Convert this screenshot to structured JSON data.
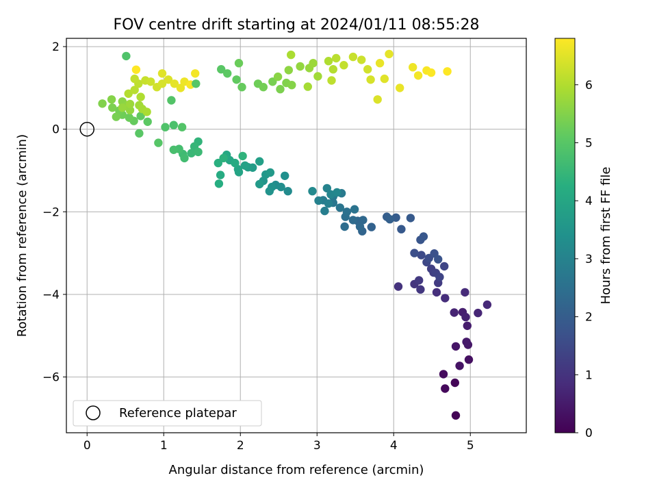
{
  "chart_data": {
    "type": "scatter",
    "title": "FOV centre drift starting at 2024/01/11 08:55:28",
    "xlabel": "Angular distance from reference (arcmin)",
    "ylabel": "Rotation from reference (arcmin)",
    "xlim": [
      -0.27,
      5.73
    ],
    "ylim": [
      -7.35,
      2.2
    ],
    "xticks": [
      0,
      1,
      2,
      3,
      4,
      5
    ],
    "yticks": [
      2,
      0,
      -2,
      -4,
      -6
    ],
    "grid": true,
    "colorbar": {
      "label": "Hours from first FF file",
      "range": [
        0,
        6.8
      ],
      "ticks": [
        0,
        1,
        2,
        3,
        4,
        5,
        6
      ],
      "colormap": "viridis"
    },
    "legend": {
      "placement": "lower-left",
      "entries": [
        "Reference platepar"
      ]
    },
    "reference_point": {
      "x": 0,
      "y": 0
    },
    "series": [
      {
        "points": [
          [
            4.81,
            -6.93,
            0.05
          ],
          [
            4.67,
            -6.28,
            0.15
          ],
          [
            4.65,
            -5.93,
            0.2
          ],
          [
            4.8,
            -6.14,
            0.1
          ],
          [
            4.98,
            -5.58,
            0.3
          ],
          [
            4.86,
            -5.73,
            0.35
          ],
          [
            4.97,
            -5.22,
            0.45
          ],
          [
            4.95,
            -5.15,
            0.5
          ],
          [
            4.81,
            -5.26,
            0.4
          ],
          [
            4.96,
            -4.76,
            0.55
          ],
          [
            4.9,
            -4.43,
            0.6
          ],
          [
            4.94,
            -4.55,
            0.65
          ],
          [
            4.79,
            -4.44,
            0.7
          ],
          [
            5.1,
            -4.45,
            0.75
          ],
          [
            5.22,
            -4.25,
            0.8
          ],
          [
            4.93,
            -3.95,
            0.85
          ],
          [
            4.67,
            -4.09,
            0.9
          ],
          [
            4.56,
            -3.95,
            0.95
          ],
          [
            4.06,
            -3.81,
            1.0
          ],
          [
            4.27,
            -3.75,
            1.05
          ],
          [
            4.35,
            -3.88,
            1.1
          ],
          [
            4.33,
            -3.66,
            1.15
          ],
          [
            4.58,
            -3.72,
            1.2
          ],
          [
            4.52,
            -3.47,
            1.25
          ],
          [
            4.49,
            -3.38,
            1.3
          ],
          [
            4.55,
            -3.48,
            1.35
          ],
          [
            4.6,
            -3.58,
            1.4
          ],
          [
            4.66,
            -3.32,
            1.45
          ],
          [
            4.43,
            -3.22,
            1.5
          ],
          [
            4.36,
            -3.05,
            1.55
          ],
          [
            4.46,
            -3.12,
            1.6
          ],
          [
            4.27,
            -3.0,
            1.65
          ],
          [
            4.53,
            -3.01,
            1.7
          ],
          [
            4.58,
            -3.15,
            1.75
          ],
          [
            4.35,
            -2.68,
            1.8
          ],
          [
            4.39,
            -2.6,
            1.85
          ],
          [
            4.1,
            -2.42,
            1.9
          ],
          [
            4.22,
            -2.15,
            1.95
          ],
          [
            4.03,
            -2.14,
            2.0
          ],
          [
            3.91,
            -2.12,
            2.05
          ],
          [
            3.95,
            -2.18,
            2.1
          ],
          [
            3.71,
            -2.37,
            2.15
          ],
          [
            3.59,
            -2.47,
            2.2
          ],
          [
            3.53,
            -2.22,
            2.25
          ],
          [
            3.6,
            -2.2,
            2.3
          ],
          [
            3.56,
            -2.36,
            2.35
          ],
          [
            3.47,
            -2.2,
            2.4
          ],
          [
            3.36,
            -2.36,
            2.45
          ],
          [
            3.37,
            -2.12,
            2.5
          ],
          [
            3.39,
            -2.0,
            2.55
          ],
          [
            3.49,
            -1.94,
            2.6
          ],
          [
            3.3,
            -1.9,
            2.65
          ],
          [
            3.21,
            -1.78,
            2.7
          ],
          [
            3.21,
            -1.63,
            2.75
          ],
          [
            3.32,
            -1.55,
            2.8
          ],
          [
            3.08,
            -1.72,
            2.85
          ],
          [
            3.1,
            -1.98,
            2.9
          ],
          [
            3.15,
            -1.8,
            2.95
          ],
          [
            3.02,
            -1.73,
            3.0
          ],
          [
            3.13,
            -1.43,
            3.05
          ],
          [
            3.18,
            -1.58,
            3.1
          ],
          [
            3.26,
            -1.53,
            3.15
          ],
          [
            2.94,
            -1.5,
            3.2
          ],
          [
            2.62,
            -1.5,
            3.25
          ],
          [
            2.46,
            -1.35,
            3.3
          ],
          [
            2.53,
            -1.4,
            3.35
          ],
          [
            2.58,
            -1.13,
            3.4
          ],
          [
            2.41,
            -1.4,
            3.45
          ],
          [
            2.38,
            -1.5,
            3.5
          ],
          [
            2.3,
            -1.25,
            3.55
          ],
          [
            2.33,
            -1.1,
            3.6
          ],
          [
            2.39,
            -1.05,
            3.65
          ],
          [
            2.25,
            -1.33,
            3.7
          ],
          [
            2.16,
            -0.93,
            3.75
          ],
          [
            2.1,
            -0.92,
            3.8
          ],
          [
            2.25,
            -0.78,
            3.85
          ],
          [
            2.06,
            -0.88,
            3.9
          ],
          [
            1.98,
            -1.04,
            3.95
          ],
          [
            1.97,
            -0.97,
            4.0
          ],
          [
            1.86,
            -0.75,
            4.05
          ],
          [
            1.82,
            -0.62,
            4.1
          ],
          [
            1.93,
            -0.82,
            4.15
          ],
          [
            1.74,
            -1.11,
            4.2
          ],
          [
            1.72,
            -1.32,
            4.25
          ],
          [
            1.71,
            -0.82,
            4.3
          ],
          [
            1.78,
            -0.7,
            4.35
          ],
          [
            2.03,
            -0.65,
            4.4
          ],
          [
            1.45,
            -0.3,
            4.45
          ],
          [
            1.4,
            -0.42,
            4.5
          ],
          [
            1.36,
            -0.58,
            4.55
          ],
          [
            1.45,
            -0.55,
            4.6
          ],
          [
            1.25,
            -0.6,
            4.65
          ],
          [
            1.27,
            -0.7,
            4.7
          ],
          [
            1.2,
            -0.48,
            4.75
          ],
          [
            1.13,
            -0.5,
            4.8
          ],
          [
            1.13,
            0.1,
            4.85
          ],
          [
            1.02,
            0.05,
            4.9
          ],
          [
            1.24,
            0.05,
            4.95
          ],
          [
            0.93,
            -0.33,
            5.0
          ],
          [
            0.68,
            -0.1,
            5.05
          ],
          [
            0.79,
            0.18,
            5.1
          ],
          [
            0.7,
            0.32,
            5.15
          ],
          [
            0.61,
            0.2,
            5.2
          ],
          [
            0.55,
            0.28,
            5.25
          ],
          [
            0.46,
            0.35,
            5.3
          ],
          [
            0.42,
            0.45,
            5.35
          ],
          [
            0.38,
            0.3,
            5.4
          ],
          [
            0.33,
            0.52,
            5.45
          ],
          [
            0.2,
            0.62,
            5.5
          ],
          [
            0.32,
            0.72,
            5.55
          ],
          [
            0.46,
            0.67,
            5.6
          ],
          [
            0.52,
            0.58,
            5.65
          ],
          [
            0.56,
            0.46,
            5.7
          ],
          [
            0.46,
            0.52,
            5.75
          ],
          [
            0.56,
            0.61,
            5.8
          ],
          [
            0.68,
            0.58,
            5.85
          ],
          [
            0.72,
            0.49,
            5.9
          ],
          [
            0.78,
            0.42,
            5.95
          ],
          [
            0.7,
            0.78,
            6.0
          ],
          [
            0.54,
            0.86,
            6.05
          ],
          [
            0.62,
            0.95,
            6.1
          ],
          [
            0.67,
            1.1,
            6.15
          ],
          [
            0.62,
            1.22,
            6.2
          ],
          [
            0.76,
            1.18,
            6.25
          ],
          [
            0.83,
            1.15,
            6.3
          ],
          [
            0.91,
            1.02,
            6.35
          ],
          [
            0.98,
            1.1,
            6.4
          ],
          [
            1.06,
            1.2,
            6.45
          ],
          [
            0.98,
            1.35,
            6.5
          ],
          [
            1.14,
            1.1,
            6.55
          ],
          [
            1.22,
            1.0,
            6.6
          ],
          [
            1.27,
            1.15,
            6.65
          ],
          [
            1.41,
            1.35,
            6.7
          ],
          [
            1.35,
            1.08,
            6.75
          ],
          [
            0.64,
            1.44,
            6.8
          ]
        ]
      },
      {
        "points": [
          [
            0.51,
            1.77,
            4.9
          ],
          [
            1.1,
            0.7,
            4.95
          ],
          [
            1.42,
            1.1,
            5.0
          ],
          [
            1.75,
            1.45,
            5.05
          ],
          [
            1.83,
            1.35,
            5.1
          ],
          [
            1.95,
            1.2,
            5.15
          ],
          [
            2.02,
            1.02,
            5.2
          ],
          [
            1.98,
            1.6,
            5.25
          ],
          [
            2.23,
            1.1,
            5.3
          ],
          [
            2.3,
            1.02,
            5.35
          ],
          [
            2.42,
            1.15,
            5.4
          ],
          [
            2.52,
            0.97,
            5.45
          ],
          [
            2.6,
            1.12,
            5.5
          ],
          [
            2.67,
            1.07,
            5.55
          ],
          [
            2.49,
            1.27,
            5.6
          ],
          [
            2.63,
            1.43,
            5.65
          ],
          [
            2.78,
            1.52,
            5.7
          ],
          [
            2.9,
            1.48,
            5.75
          ],
          [
            2.95,
            1.6,
            5.8
          ],
          [
            3.01,
            1.28,
            5.85
          ],
          [
            2.88,
            1.03,
            5.9
          ],
          [
            2.66,
            1.8,
            5.95
          ],
          [
            3.15,
            1.65,
            6.0
          ],
          [
            3.21,
            1.45,
            6.05
          ],
          [
            3.25,
            1.72,
            6.1
          ],
          [
            3.19,
            1.18,
            6.15
          ],
          [
            3.35,
            1.55,
            6.2
          ],
          [
            3.47,
            1.75,
            6.25
          ],
          [
            3.58,
            1.68,
            6.3
          ],
          [
            3.66,
            1.45,
            6.35
          ],
          [
            3.7,
            1.2,
            6.4
          ],
          [
            3.79,
            0.72,
            6.45
          ],
          [
            3.88,
            1.22,
            6.5
          ],
          [
            3.94,
            1.82,
            6.55
          ],
          [
            4.08,
            1.0,
            6.6
          ],
          [
            4.25,
            1.5,
            6.65
          ],
          [
            4.32,
            1.3,
            6.7
          ],
          [
            4.43,
            1.42,
            6.75
          ],
          [
            4.49,
            1.37,
            6.78
          ],
          [
            4.7,
            1.4,
            6.8
          ],
          [
            3.82,
            1.6,
            6.6
          ]
        ]
      }
    ]
  }
}
